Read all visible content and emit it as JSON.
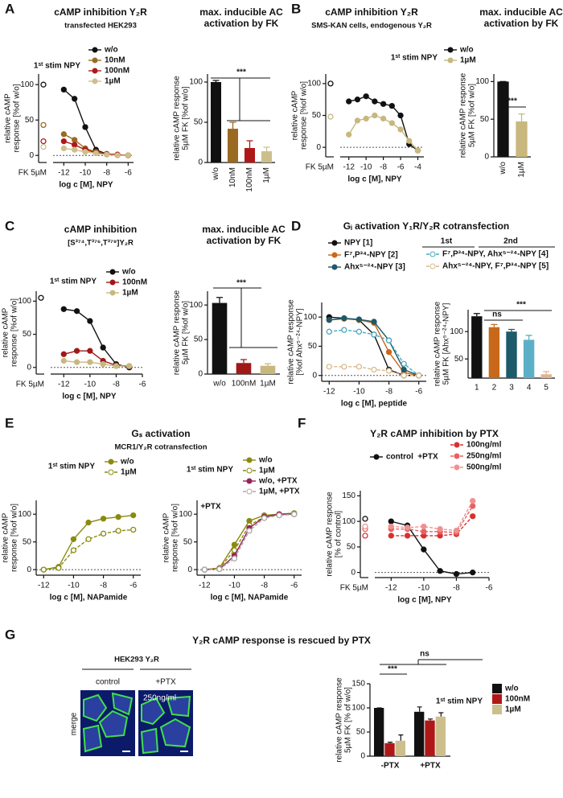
{
  "panel_labels": [
    "A",
    "B",
    "C",
    "D",
    "E",
    "F",
    "G"
  ],
  "image": {
    "title": "HEK293 Y₂R",
    "columns": [
      "control",
      "+PTX"
    ],
    "dose": "250ng/ml",
    "row": "merge"
  },
  "chart_data": [
    {
      "type": "line",
      "title": "cAMP inhibition Y₂R",
      "subtitle": "transfected HEK293",
      "xlabel": "log c [M], NPY",
      "ylabel": [
        "relative cAMP",
        "response [%of w/o]"
      ],
      "fk_label": "FK 5µM",
      "legend_title": "1ˢᵗ stim NPY",
      "xlim": [
        -13,
        -5.5
      ],
      "xticks": [
        -12,
        -10,
        -8,
        -6
      ],
      "ylim": [
        -10,
        115
      ],
      "yticks": [
        0,
        50,
        100
      ],
      "x": [
        -12,
        -11,
        -10,
        -9,
        -8,
        -7,
        -6
      ],
      "series": [
        {
          "name": "w/o",
          "color": "#111111",
          "fk": 100,
          "values": [
            93,
            80,
            40,
            8,
            2,
            1,
            0
          ]
        },
        {
          "name": "10nM",
          "color": "#9a6a22",
          "fk": 43,
          "values": [
            30,
            22,
            10,
            5,
            2,
            1,
            0
          ]
        },
        {
          "name": "100nM",
          "color": "#b01818",
          "fk": 20,
          "values": [
            20,
            15,
            8,
            4,
            2,
            1,
            0
          ]
        },
        {
          "name": "1µM",
          "color": "#cdbf8c",
          "fk": 12,
          "values": [
            10,
            8,
            5,
            3,
            1,
            0,
            0
          ]
        }
      ]
    },
    {
      "type": "bar",
      "title": [
        "max. inducible AC",
        "activation by FK"
      ],
      "ylabel": [
        "relative cAMP response",
        "5µM FK [%of w/o]"
      ],
      "categories": [
        "w/o",
        "10nM",
        "100nM",
        "1µM"
      ],
      "values": [
        100,
        42,
        18,
        14
      ],
      "errors": [
        2,
        8,
        9,
        5
      ],
      "colors": [
        "#111111",
        "#9a6a22",
        "#b01818",
        "#cdbf8c"
      ],
      "ylim": [
        0,
        110
      ],
      "yticks": [
        0,
        50,
        100
      ],
      "annotations": [
        "***"
      ]
    },
    {
      "type": "line",
      "title": "cAMP inhibition Y₂R",
      "subtitle": "SMS-KAN cells, endogenous Y₂R",
      "xlabel": "log c [M], NPY",
      "ylabel": [
        "relative cAMP",
        "response [%of w/o]"
      ],
      "fk_label": "FK 5µM",
      "legend_title": "1ˢᵗ stim NPY",
      "xlim": [
        -13,
        -3.3
      ],
      "xticks": [
        -12,
        -10,
        -8,
        -6,
        -4
      ],
      "ylim": [
        -15,
        115
      ],
      "yticks": [
        0,
        50,
        100
      ],
      "x": [
        -12,
        -11,
        -10,
        -9,
        -8,
        -7,
        -6,
        -5,
        -4
      ],
      "series": [
        {
          "name": "w/o",
          "color": "#111111",
          "fk": 100,
          "values": [
            72,
            75,
            80,
            72,
            68,
            65,
            50,
            5,
            -5
          ]
        },
        {
          "name": "1µM",
          "color": "#c8b87e",
          "fk": 48,
          "values": [
            20,
            42,
            45,
            50,
            45,
            38,
            28,
            10,
            -5
          ]
        }
      ]
    },
    {
      "type": "bar",
      "title": [
        "max. inducible AC",
        "activation by FK"
      ],
      "ylabel": [
        "relative cAMP response",
        "5µM FK [%of w/o]"
      ],
      "categories": [
        "w/o",
        "1µM"
      ],
      "values": [
        100,
        47
      ],
      "errors": [
        0,
        10
      ],
      "colors": [
        "#111111",
        "#c8b87e"
      ],
      "ylim": [
        0,
        110
      ],
      "yticks": [
        0,
        50,
        100
      ],
      "annotations": [
        "***"
      ]
    },
    {
      "type": "line",
      "title": "cAMP inhibition",
      "subtitle": "[S³⁷⁴,T³⁷⁶,T³⁷⁹]Y₂R",
      "xlabel": "log c [M], NPY",
      "ylabel": [
        "relative cAMP",
        "response [%of w/o]"
      ],
      "fk_label": "FK 5µM",
      "legend_title": "1ˢᵗ stim NPY",
      "xlim": [
        -13,
        -6
      ],
      "xticks": [
        -12,
        -10,
        -8,
        -6
      ],
      "ylim": [
        -10,
        115
      ],
      "yticks": [
        0,
        50,
        100
      ],
      "x": [
        -12,
        -11,
        -10,
        -9,
        -8,
        -7
      ],
      "series": [
        {
          "name": "w/o",
          "color": "#111111",
          "fk": 105,
          "values": [
            88,
            85,
            70,
            30,
            5,
            0
          ]
        },
        {
          "name": "100nM",
          "color": "#a01818",
          "values": [
            20,
            25,
            25,
            10,
            3,
            2
          ]
        },
        {
          "name": "1µM",
          "color": "#c8b87e",
          "values": [
            10,
            8,
            8,
            5,
            2,
            2
          ]
        }
      ]
    },
    {
      "type": "bar",
      "title": [
        "max. inducible AC",
        "activation by FK"
      ],
      "ylabel": [
        "relative cAMP response",
        "5µM FK [%of w/o]"
      ],
      "categories": [
        "w/o",
        "100nM",
        "1µM"
      ],
      "values": [
        103,
        16,
        12
      ],
      "errors": [
        8,
        5,
        3
      ],
      "colors": [
        "#111111",
        "#a01818",
        "#c8b87e"
      ],
      "ylim": [
        0,
        120
      ],
      "yticks": [
        0,
        50,
        100
      ],
      "annotations": [
        "***"
      ]
    },
    {
      "type": "line",
      "title": "Gᵢ activation Y₁R/Y₂R cotransfection",
      "xlabel": "log c [M], peptide",
      "ylabel": [
        "relative cAMP response",
        "[%of Ahx⁵⁻²⁴-NPY]"
      ],
      "annotations": [
        "1st",
        "2nd"
      ],
      "xlim": [
        -12.5,
        -5.5
      ],
      "xticks": [
        -12,
        -10,
        -8,
        -6
      ],
      "ylim": [
        -10,
        125
      ],
      "yticks": [
        0,
        50,
        100
      ],
      "x": [
        -12,
        -11,
        -10,
        -9,
        -8,
        -7,
        -6
      ],
      "series": [
        {
          "name": "NPY [1]",
          "color": "#111111",
          "values": [
            100,
            98,
            95,
            70,
            10,
            0,
            0
          ]
        },
        {
          "name": "F⁷,P³⁴-NPY [2]",
          "color": "#c8681a",
          "values": [
            95,
            97,
            95,
            90,
            40,
            5,
            0
          ]
        },
        {
          "name": "Ahx⁵⁻²⁴-NPY [3]",
          "color": "#1d5a6a",
          "values": [
            95,
            98,
            96,
            92,
            60,
            10,
            0
          ]
        },
        {
          "name": "F⁷,P³⁴-NPY, Ahx⁵⁻²⁴-NPY [4]",
          "color": "#4aa8c0",
          "open": true,
          "dashed": true,
          "values": [
            75,
            78,
            75,
            70,
            60,
            20,
            0
          ]
        },
        {
          "name": "Ahx⁵⁻²⁴-NPY, F⁷,P³⁴-NPY [5]",
          "color": "#d9b98a",
          "open": true,
          "dashed": true,
          "values": [
            15,
            15,
            15,
            10,
            8,
            0,
            0
          ]
        }
      ]
    },
    {
      "type": "bar",
      "ylabel": [
        "relative cAMP response",
        "5µM FK [Ahx⁵⁻²⁴-NPY]"
      ],
      "categories": [
        "1",
        "2",
        "3",
        "4",
        "5"
      ],
      "values": [
        128,
        108,
        100,
        85,
        22
      ],
      "errors": [
        5,
        5,
        4,
        8,
        5
      ],
      "colors": [
        "#111111",
        "#c8681a",
        "#1d5a6a",
        "#5bb0c8",
        "#e0b48c"
      ],
      "ylim": [
        15,
        140
      ],
      "yticks": [
        50,
        100
      ],
      "annotations": [
        "ns",
        "***"
      ]
    },
    {
      "type": "line",
      "title": "Gₛ activation",
      "subtitle": "MCR1/Y₂R cotransfection",
      "xlabel": "log c [M], NAPamide",
      "ylabel": [
        "relative cAMP",
        "response [%of w/o]"
      ],
      "legend_title": "1ˢᵗ stim NPY",
      "xlim": [
        -12.5,
        -5.5
      ],
      "xticks": [
        -12,
        -10,
        -8,
        -6
      ],
      "ylim": [
        -10,
        125
      ],
      "yticks": [
        0,
        50,
        100
      ],
      "x": [
        -12,
        -11,
        -10,
        -9,
        -8,
        -7,
        -6
      ],
      "series": [
        {
          "name": "w/o",
          "color": "#8a8a10",
          "values": [
            0,
            5,
            55,
            85,
            92,
            95,
            98
          ]
        },
        {
          "name": "1µM",
          "color": "#8a8a10",
          "open": true,
          "dashed": true,
          "values": [
            0,
            3,
            35,
            55,
            65,
            70,
            72
          ]
        }
      ]
    },
    {
      "type": "line",
      "xlabel": "log c [M], NAPamide",
      "ylabel": [
        "relative cAMP",
        "response [%of w/o]"
      ],
      "legend_title": "1ˢᵗ stim NPY",
      "annotations": [
        "+PTX"
      ],
      "xlim": [
        -12.5,
        -5.5
      ],
      "xticks": [
        -12,
        -10,
        -8,
        -6
      ],
      "ylim": [
        -10,
        125
      ],
      "yticks": [
        0,
        50,
        100
      ],
      "x": [
        -12,
        -11,
        -10,
        -9,
        -8,
        -7,
        -6
      ],
      "series": [
        {
          "name": "w/o",
          "color": "#8a8a10",
          "values": [
            0,
            3,
            45,
            88,
            98,
            100,
            102
          ]
        },
        {
          "name": "1µM",
          "color": "#8a8a10",
          "open": true,
          "dashed": true,
          "values": [
            0,
            2,
            35,
            80,
            95,
            98,
            100
          ]
        },
        {
          "name": "w/o, +PTX",
          "color": "#9a2058",
          "values": [
            0,
            1,
            25,
            75,
            95,
            100,
            100
          ]
        },
        {
          "name": "1µM, +PTX",
          "color": "#aaaaaa",
          "open": true,
          "dashed": true,
          "values": [
            0,
            1,
            20,
            70,
            93,
            98,
            100
          ]
        }
      ]
    },
    {
      "type": "line",
      "title": "Y₂R cAMP inhibition by PTX",
      "xlabel": "log c [M], NPY",
      "ylabel": [
        "relative cAMP response",
        "[% of control]"
      ],
      "fk_label": "FK 5µM",
      "annotations": [
        "+PTX"
      ],
      "xlim": [
        -13,
        -6
      ],
      "xticks": [
        -12,
        -10,
        -8,
        -6
      ],
      "ylim": [
        -10,
        160
      ],
      "yticks": [
        0,
        50,
        100,
        150
      ],
      "x": [
        -12,
        -11,
        -10,
        -9,
        -8,
        -7
      ],
      "series": [
        {
          "name": "control",
          "color": "#111111",
          "fk": 105,
          "values": [
            100,
            92,
            45,
            3,
            -3,
            0
          ]
        },
        {
          "name": "100ng/ml",
          "color": "#d83030",
          "fk": 72,
          "dashed": true,
          "values": [
            72,
            72,
            72,
            72,
            75,
            110
          ]
        },
        {
          "name": "250ng/ml",
          "color": "#e86060",
          "fk": 85,
          "dashed": true,
          "values": [
            85,
            85,
            80,
            80,
            78,
            130
          ]
        },
        {
          "name": "500ng/ml",
          "color": "#f09090",
          "fk": 90,
          "dashed": true,
          "values": [
            90,
            88,
            90,
            85,
            82,
            140
          ]
        }
      ]
    },
    {
      "type": "grouped_bar",
      "title": "Y₂R cAMP response is rescued by PTX",
      "ylabel": [
        "relative cAMP response",
        "5µM FK [% of w/o]"
      ],
      "legend_title": "1ˢᵗ stim NPY",
      "categories": [
        "-PTX",
        "+PTX"
      ],
      "ylim": [
        0,
        150
      ],
      "yticks": [
        0,
        50,
        100,
        150
      ],
      "annotations": [
        "***",
        "ns"
      ],
      "series": [
        {
          "name": "w/o",
          "color": "#111111",
          "values": [
            100,
            92
          ],
          "errors": [
            0,
            10
          ]
        },
        {
          "name": "100nM",
          "color": "#b01818",
          "values": [
            27,
            74
          ],
          "errors": [
            2,
            3
          ]
        },
        {
          "name": "1µM",
          "color": "#cdbf8c",
          "values": [
            32,
            82
          ],
          "errors": [
            12,
            8
          ]
        }
      ]
    }
  ]
}
